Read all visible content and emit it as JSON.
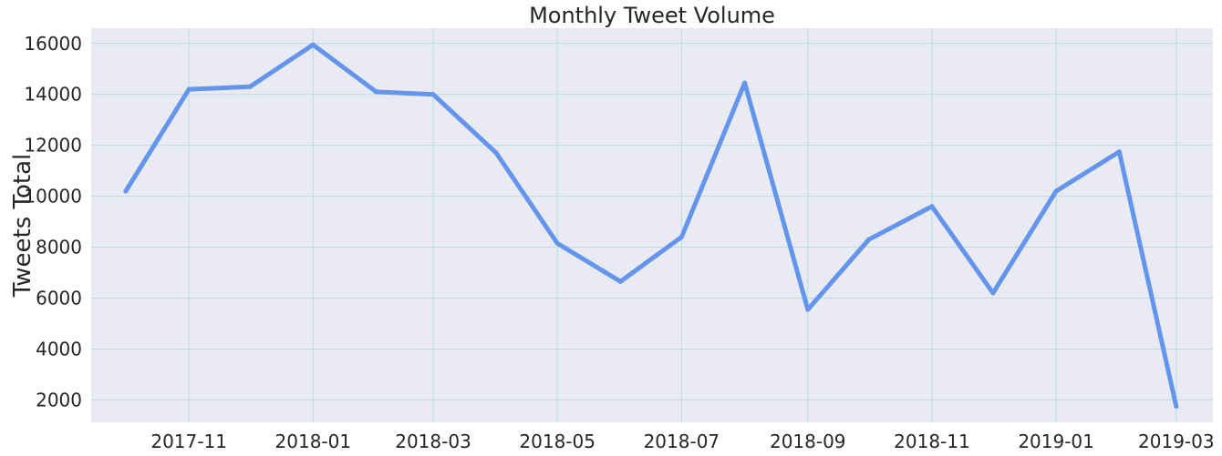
{
  "chart_data": {
    "type": "line",
    "title": "Monthly Tweet Volume",
    "xlabel": "",
    "ylabel": "Tweets Total",
    "x": [
      "2017-10-01",
      "2017-11-01",
      "2017-12-01",
      "2018-01-01",
      "2018-02-01",
      "2018-03-01",
      "2018-04-01",
      "2018-05-01",
      "2018-06-01",
      "2018-07-01",
      "2018-08-01",
      "2018-09-01",
      "2018-10-01",
      "2018-11-01",
      "2018-12-01",
      "2019-01-01",
      "2019-02-01",
      "2019-03-01"
    ],
    "series": [
      {
        "name": "",
        "color": "#6495ED",
        "values": [
          10200,
          14200,
          14300,
          15950,
          14100,
          14000,
          11700,
          8150,
          6650,
          8400,
          14450,
          5550,
          8300,
          9600,
          6200,
          10200,
          11750,
          1750
        ]
      }
    ],
    "xlim": [
      "2017-09-14",
      "2019-03-19"
    ],
    "ylim": [
      1120,
      16600
    ],
    "x_ticks": [
      "2017-11",
      "2018-01",
      "2018-03",
      "2018-05",
      "2018-07",
      "2018-09",
      "2018-11",
      "2019-01",
      "2019-03"
    ],
    "y_ticks": [
      2000,
      4000,
      6000,
      8000,
      10000,
      12000,
      14000,
      16000
    ],
    "grid": true,
    "colors": {
      "background": "#EAEAF2",
      "grid": "#B0E0E6",
      "line": "#6495ED"
    }
  }
}
